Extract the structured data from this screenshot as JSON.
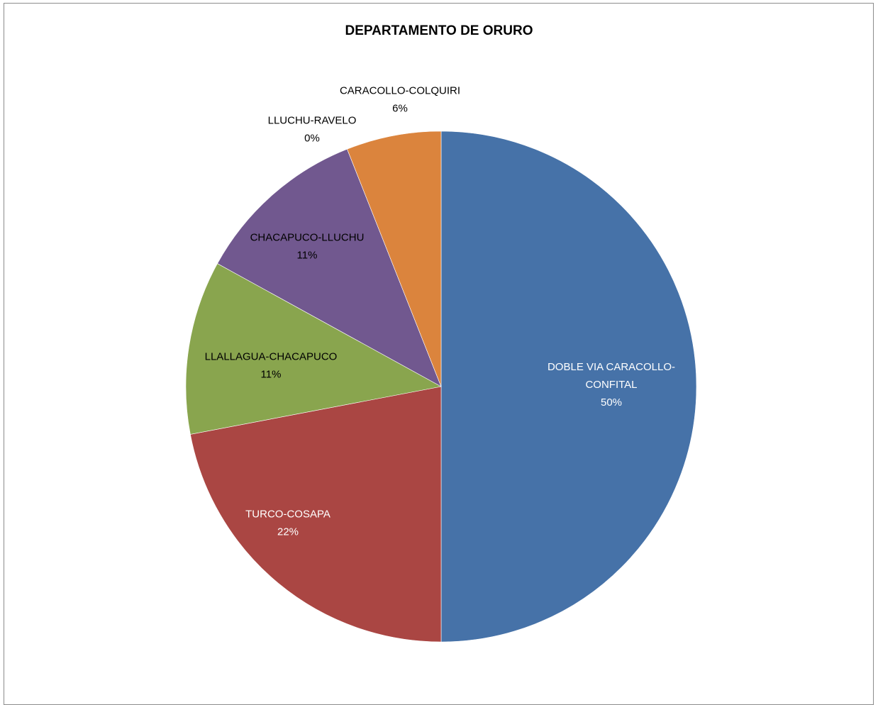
{
  "chart_data": {
    "type": "pie",
    "title": "DEPARTAMENTO DE ORURO",
    "slices": [
      {
        "label": "DOBLE VIA  CARACOLLO-CONFITAL",
        "label_lines": [
          "DOBLE VIA  CARACOLLO-",
          "CONFITAL"
        ],
        "value": 50,
        "pct_text": "50%",
        "color": "#4672A8",
        "text_color": "#ffffff"
      },
      {
        "label": "TURCO-COSAPA",
        "label_lines": [
          "TURCO-COSAPA"
        ],
        "value": 22,
        "pct_text": "22%",
        "color": "#AA4643",
        "text_color": "#ffffff"
      },
      {
        "label": "LLALLAGUA-CHACAPUCO",
        "label_lines": [
          "LLALLAGUA-CHACAPUCO"
        ],
        "value": 11,
        "pct_text": "11%",
        "color": "#89A54E",
        "text_color": "#000000"
      },
      {
        "label": "CHACAPUCO-LLUCHU",
        "label_lines": [
          "CHACAPUCO-LLUCHU"
        ],
        "value": 11,
        "pct_text": "11%",
        "color": "#71588F",
        "text_color": "#000000"
      },
      {
        "label": "LLUCHU-RAVELO",
        "label_lines": [
          "LLUCHU-RAVELO"
        ],
        "value": 0,
        "pct_text": "0%",
        "color": "#4198AF",
        "text_color": "#000000"
      },
      {
        "label": "CARACOLLO-COLQUIRI",
        "label_lines": [
          "CARACOLLO-COLQUIRI"
        ],
        "value": 6,
        "pct_text": "6%",
        "color": "#DB843D",
        "text_color": "#000000"
      }
    ]
  }
}
